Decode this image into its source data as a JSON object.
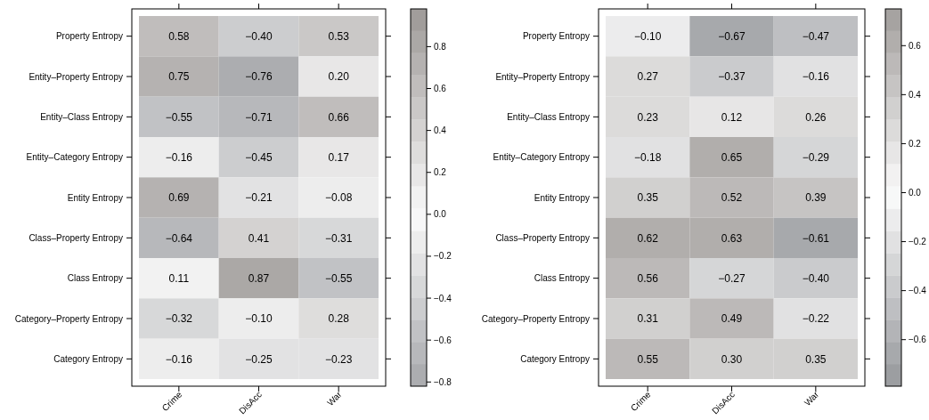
{
  "chart_data": [
    {
      "type": "heatmap",
      "categories": [
        "Crime",
        "DisAcc",
        "War"
      ],
      "y_categories": [
        "Property Entropy",
        "Entity–Property Entropy",
        "Entity–Class Entropy",
        "Entity–Category Entropy",
        "Entity Entropy",
        "Class–Property Entropy",
        "Class Entropy",
        "Category–Property Entropy",
        "Category Entropy"
      ],
      "cells": [
        [
          0.58,
          -0.4,
          0.53
        ],
        [
          0.75,
          -0.76,
          0.2
        ],
        [
          -0.55,
          -0.71,
          0.66
        ],
        [
          -0.16,
          -0.45,
          0.17
        ],
        [
          0.69,
          -0.21,
          -0.08
        ],
        [
          -0.64,
          0.41,
          -0.31
        ],
        [
          0.11,
          0.87,
          -0.55
        ],
        [
          -0.32,
          -0.1,
          0.28
        ],
        [
          -0.16,
          -0.25,
          -0.23
        ]
      ],
      "cell_labels": [
        [
          "0.58",
          "−0.40",
          "0.53"
        ],
        [
          "0.75",
          "−0.76",
          "0.20"
        ],
        [
          "−0.55",
          "−0.71",
          "0.66"
        ],
        [
          "−0.16",
          "−0.45",
          "0.17"
        ],
        [
          "0.69",
          "−0.21",
          "−0.08"
        ],
        [
          "−0.64",
          "0.41",
          "−0.31"
        ],
        [
          "0.11",
          "0.87",
          "−0.55"
        ],
        [
          "−0.32",
          "−0.10",
          "0.28"
        ],
        [
          "−0.16",
          "−0.25",
          "−0.23"
        ]
      ],
      "clim": [
        -0.82,
        0.98
      ],
      "cticks": [
        -0.8,
        -0.6,
        -0.4,
        -0.2,
        {
          "value": 0,
          "label": "0.0"
        },
        0.2,
        0.4,
        0.6,
        0.8
      ]
    },
    {
      "type": "heatmap",
      "categories": [
        "Crime",
        "DisAcc",
        "War"
      ],
      "y_categories": [
        "Property Entropy",
        "Entity–Property Entropy",
        "Entity–Class Entropy",
        "Entity–Category Entropy",
        "Entity Entropy",
        "Class–Property Entropy",
        "Class Entropy",
        "Category–Property Entropy",
        "Category Entropy"
      ],
      "cells": [
        [
          -0.1,
          -0.67,
          -0.47
        ],
        [
          0.27,
          -0.37,
          -0.16
        ],
        [
          0.23,
          0.12,
          0.26
        ],
        [
          -0.18,
          0.65,
          -0.29
        ],
        [
          0.35,
          0.52,
          0.39
        ],
        [
          0.62,
          0.63,
          -0.61
        ],
        [
          0.56,
          -0.27,
          -0.4
        ],
        [
          0.31,
          0.49,
          -0.22
        ],
        [
          0.55,
          0.3,
          0.35
        ]
      ],
      "cell_labels": [
        [
          "−0.10",
          "−0.67",
          "−0.47"
        ],
        [
          "0.27",
          "−0.37",
          "−0.16"
        ],
        [
          "0.23",
          "0.12",
          "0.26"
        ],
        [
          "−0.18",
          "0.65",
          "−0.29"
        ],
        [
          "0.35",
          "0.52",
          "0.39"
        ],
        [
          "0.62",
          "0.63",
          "−0.61"
        ],
        [
          "0.56",
          "−0.27",
          "−0.40"
        ],
        [
          "0.31",
          "0.49",
          "−0.22"
        ],
        [
          "0.55",
          "0.30",
          "0.35"
        ]
      ],
      "clim": [
        -0.79,
        0.75
      ],
      "cticks": [
        -0.6,
        -0.4,
        -0.2,
        {
          "value": 0,
          "label": "0.0"
        },
        0.2,
        0.4,
        0.6
      ]
    }
  ]
}
